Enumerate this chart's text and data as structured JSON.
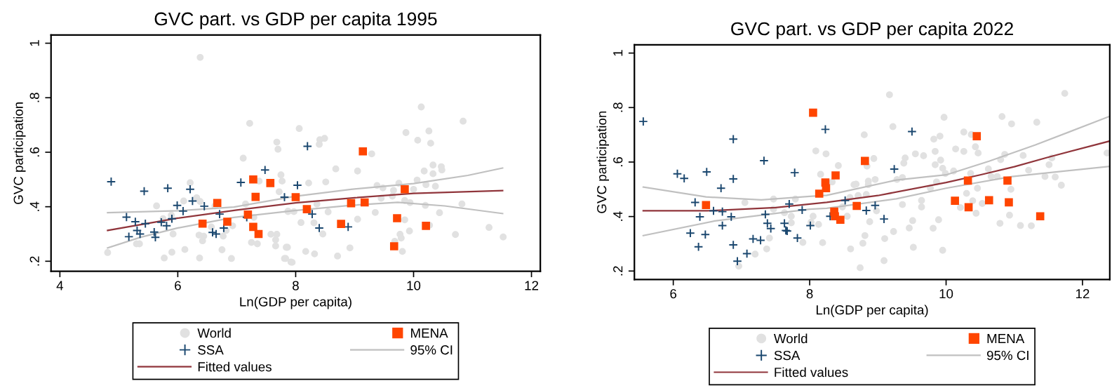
{
  "chart_data": [
    {
      "type": "scatter",
      "title": "GVC part. vs GDP per capita 1995",
      "xlabel": "Ln(GDP per capita)",
      "ylabel": "GVC participation",
      "xlim": [
        3.85,
        12.15
      ],
      "ylim": [
        0.163,
        1.03
      ],
      "xticks": [
        4,
        6,
        8,
        10,
        12
      ],
      "yticks": [
        {
          "value": 0.2,
          "label": ".2"
        },
        {
          "value": 0.4,
          "label": ".4"
        },
        {
          "value": 0.6,
          "label": ".6"
        },
        {
          "value": 0.8,
          "label": ".8"
        },
        1
      ],
      "grid": false,
      "legend": "bottom",
      "series": [
        {
          "name": "World",
          "marker": "circle",
          "color": "#e1e1e1",
          "x": [
            4.81,
            5.3,
            5.35,
            5.64,
            5.75,
            5.77,
            5.9,
            5.92,
            5.89,
            6.1,
            6.12,
            6.21,
            6.32,
            6.38,
            6.38,
            6.36,
            6.37,
            6.42,
            6.44,
            6.57,
            6.63,
            6.75,
            6.77,
            6.82,
            6.91,
            6.93,
            7.11,
            7.15,
            7.22,
            7.25,
            7.29,
            7.35,
            7.38,
            7.68,
            7.7,
            7.58,
            7.68,
            7.66,
            7.66,
            7.72,
            7.75,
            7.77,
            7.84,
            7.81,
            7.87,
            7.92,
            8.06,
            8.41,
            8.49,
            8.4,
            8.68,
            9.05,
            9.29,
            10.13,
            10.84,
            9.87,
            10.26,
            10.07,
            10.29,
            8.22,
            8.51,
            10.33,
            10.47,
            10.18,
            10.33,
            10.48,
            10.06,
            10.21,
            10.37,
            9.75,
            9.66,
            9.38,
            9.48,
            10.0,
            9.64,
            9.45,
            9.85,
            9.94,
            10.2,
            10.82,
            10.44,
            9.35,
            8.36,
            8.55,
            7.87,
            7.97,
            8.09,
            8.31,
            8.46,
            9.05,
            9.85,
            10.27,
            9.93,
            9.77,
            9.79,
            9.68,
            10.71,
            11.28,
            11.52,
            7.86,
            8.17,
            8.32,
            8.71,
            8.92,
            9.81,
            7.83,
            7.94
          ],
          "values": [
            0.232,
            0.264,
            0.264,
            0.403,
            0.356,
            0.212,
            0.233,
            0.3,
            0.369,
            0.421,
            0.243,
            0.488,
            0.433,
            0.419,
            0.948,
            0.296,
            0.212,
            0.275,
            0.292,
            0.326,
            0.403,
            0.242,
            0.292,
            0.313,
            0.21,
            0.33,
            0.578,
            0.41,
            0.706,
            0.269,
            0.361,
            0.264,
            0.494,
            0.637,
            0.611,
            0.299,
            0.299,
            0.256,
            0.279,
            0.455,
            0.517,
            0.494,
            0.251,
            0.21,
            0.384,
            0.197,
            0.687,
            0.646,
            0.651,
            0.629,
            0.539,
            0.531,
            0.594,
            0.766,
            0.714,
            0.672,
            0.678,
            0.644,
            0.633,
            0.487,
            0.491,
            0.553,
            0.547,
            0.531,
            0.521,
            0.535,
            0.498,
            0.481,
            0.475,
            0.486,
            0.46,
            0.478,
            0.469,
            0.464,
            0.439,
            0.431,
            0.423,
            0.415,
            0.405,
            0.41,
            0.378,
            0.379,
            0.41,
            0.381,
            0.382,
            0.382,
            0.342,
            0.341,
            0.3,
            0.354,
            0.352,
            0.332,
            0.311,
            0.299,
            0.285,
            0.273,
            0.298,
            0.324,
            0.289,
            0.251,
            0.236,
            0.227,
            0.219,
            0.249,
            0.236,
            0.21,
            0.196
          ]
        },
        {
          "name": "SSA",
          "marker": "cross",
          "color": "#1a476f",
          "x": [
            4.87,
            5.13,
            5.17,
            5.28,
            5.31,
            5.36,
            5.43,
            5.45,
            5.6,
            5.62,
            5.72,
            5.81,
            5.83,
            5.9,
            5.99,
            6.09,
            6.21,
            6.25,
            6.45,
            6.59,
            6.65,
            6.71,
            6.78,
            7.07,
            7.17,
            7.48,
            7.81,
            8.2,
            8.03,
            8.28,
            8.4,
            8.89
          ],
          "values": [
            0.492,
            0.362,
            0.29,
            0.345,
            0.313,
            0.3,
            0.457,
            0.338,
            0.307,
            0.288,
            0.343,
            0.33,
            0.468,
            0.356,
            0.405,
            0.384,
            0.464,
            0.421,
            0.402,
            0.306,
            0.3,
            0.373,
            0.322,
            0.489,
            0.361,
            0.535,
            0.435,
            0.622,
            0.479,
            0.373,
            0.322,
            0.326
          ]
        },
        {
          "name": "Fitted values",
          "type": "line",
          "marker": "none",
          "color": "#90353b",
          "x": [
            4.81,
            6.0,
            7.0,
            8.0,
            9.0,
            10.0,
            11.51
          ],
          "values": [
            0.313,
            0.358,
            0.388,
            0.414,
            0.433,
            0.449,
            0.459
          ]
        },
        {
          "name": "MENA",
          "marker": "square",
          "color": "#ff4500",
          "x": [
            6.42,
            6.67,
            6.84,
            7.19,
            7.28,
            7.28,
            7.32,
            7.37,
            7.57,
            8.0,
            8.19,
            8.77,
            8.94,
            9.17,
            9.14,
            9.85,
            9.72,
            10.21,
            9.67
          ],
          "values": [
            0.338,
            0.414,
            0.345,
            0.371,
            0.5,
            0.326,
            0.436,
            0.3,
            0.487,
            0.435,
            0.391,
            0.337,
            0.413,
            0.416,
            0.603,
            0.464,
            0.358,
            0.33,
            0.255
          ]
        },
        {
          "name": "95% CI",
          "type": "line",
          "marker": "none",
          "color": "#c0c0c0",
          "x": [
            4.81,
            6.0,
            6.95,
            7.98,
            8.94,
            10.0,
            10.92,
            11.51
          ],
          "values": [
            0.378,
            0.385,
            0.399,
            0.438,
            0.464,
            0.485,
            0.515,
            0.542
          ]
        },
        {
          "type": "line",
          "marker": "none",
          "color": "#c0c0c0",
          "x": [
            4.81,
            5.37,
            6.0,
            6.95,
            7.98,
            8.94,
            9.73,
            10.53,
            11.51
          ],
          "values": [
            0.249,
            0.288,
            0.322,
            0.361,
            0.386,
            0.405,
            0.416,
            0.403,
            0.375
          ]
        }
      ]
    },
    {
      "type": "scatter",
      "title": "GVC part. vs GDP per capita 2022",
      "xlabel": "Ln(GDP per capita)",
      "ylabel": "GVC participation",
      "xlim": [
        5.43,
        12.4
      ],
      "ylim": [
        0.169,
        1.03
      ],
      "xticks": [
        6,
        8,
        10,
        12
      ],
      "yticks": [
        {
          "value": 0.2,
          "label": ".2"
        },
        {
          "value": 0.4,
          "label": ".4"
        },
        {
          "value": 0.6,
          "label": ".6"
        },
        {
          "value": 0.8,
          "label": ".8"
        },
        1
      ],
      "grid": false,
      "legend": "bottom",
      "series": [
        {
          "name": "World",
          "marker": "circle",
          "color": "#e1e1e1",
          "x": [
            6.96,
            7.05,
            7.2,
            7.37,
            7.41,
            7.47,
            7.47,
            7.63,
            7.73,
            7.73,
            7.79,
            7.9,
            8.02,
            8.05,
            8.13,
            8.19,
            8.09,
            8.24,
            8.16,
            8.33,
            8.42,
            8.48,
            8.55,
            8.6,
            8.65,
            8.59,
            9.17,
            9.22,
            8.8,
            8.94,
            8.84,
            8.86,
            8.86,
            8.96,
            8.68,
            8.83,
            8.71,
            8.98,
            8.88,
            8.81,
            8.78,
            8.74,
            9.09,
            9.1,
            9.23,
            9.28,
            9.36,
            9.36,
            9.38,
            9.4,
            9.46,
            9.51,
            9.52,
            9.55,
            9.64,
            9.64,
            9.67,
            9.77,
            9.82,
            9.91,
            9.84,
            9.84,
            9.86,
            9.92,
            9.95,
            9.99,
            9.81,
            9.89,
            9.95,
            9.97,
            10.11,
            10.14,
            10.26,
            10.26,
            10.37,
            10.43,
            10.47,
            10.36,
            10.3,
            10.21,
            10.39,
            10.46,
            10.44,
            10.53,
            10.62,
            10.66,
            10.75,
            10.79,
            10.82,
            10.96,
            10.86,
            10.8,
            10.95,
            10.93,
            11.09,
            11.13,
            11.21,
            11.25,
            11.33,
            11.45,
            11.51,
            11.55,
            11.6,
            11.69,
            11.74,
            12.36
          ],
          "values": [
            0.218,
            0.451,
            0.262,
            0.281,
            0.321,
            0.464,
            0.427,
            0.414,
            0.401,
            0.377,
            0.464,
            0.305,
            0.379,
            0.401,
            0.371,
            0.304,
            0.641,
            0.63,
            0.555,
            0.527,
            0.587,
            0.435,
            0.401,
            0.281,
            0.517,
            0.47,
            0.847,
            0.73,
            0.7,
            0.613,
            0.585,
            0.53,
            0.517,
            0.536,
            0.519,
            0.481,
            0.477,
            0.421,
            0.381,
            0.33,
            0.302,
            0.212,
            0.238,
            0.319,
            0.345,
            0.536,
            0.543,
            0.444,
            0.596,
            0.615,
            0.358,
            0.385,
            0.287,
            0.63,
            0.435,
            0.459,
            0.623,
            0.504,
            0.684,
            0.695,
            0.639,
            0.59,
            0.527,
            0.607,
            0.577,
            0.558,
            0.357,
            0.388,
            0.276,
            0.764,
            0.567,
            0.648,
            0.639,
            0.71,
            0.701,
            0.656,
            0.633,
            0.558,
            0.485,
            0.433,
            0.458,
            0.504,
            0.412,
            0.448,
            0.575,
            0.547,
            0.547,
            0.375,
            0.767,
            0.74,
            0.628,
            0.609,
            0.5,
            0.405,
            0.367,
            0.624,
            0.57,
            0.366,
            0.746,
            0.547,
            0.59,
            0.615,
            0.545,
            0.515,
            0.852,
            0.633
          ]
        },
        {
          "name": "SSA",
          "marker": "cross",
          "color": "#1a476f",
          "x": [
            5.56,
            6.06,
            6.16,
            6.49,
            6.32,
            6.39,
            6.25,
            6.37,
            6.47,
            6.59,
            6.7,
            6.72,
            6.72,
            6.85,
            6.88,
            6.88,
            6.88,
            6.94,
            7.08,
            7.17,
            7.28,
            7.33,
            7.35,
            7.38,
            7.43,
            7.63,
            7.65,
            7.67,
            7.7,
            7.78,
            7.82,
            7.89,
            8.01,
            8.23,
            8.3,
            8.52,
            8.83,
            8.96,
            9.09,
            9.24,
            9.5
          ],
          "values": [
            0.749,
            0.557,
            0.54,
            0.564,
            0.452,
            0.399,
            0.339,
            0.289,
            0.334,
            0.421,
            0.504,
            0.418,
            0.367,
            0.399,
            0.684,
            0.538,
            0.296,
            0.236,
            0.264,
            0.318,
            0.313,
            0.605,
            0.408,
            0.375,
            0.356,
            0.375,
            0.349,
            0.347,
            0.446,
            0.561,
            0.321,
            0.424,
            0.367,
            0.72,
            0.401,
            0.459,
            0.422,
            0.441,
            0.391,
            0.574,
            0.712
          ]
        },
        {
          "name": "Fitted values",
          "type": "line",
          "marker": "none",
          "color": "#90353b",
          "x": [
            5.56,
            6.5,
            7.5,
            8.25,
            9.0,
            10.0,
            10.5,
            11.0,
            11.5,
            12.4
          ],
          "values": [
            0.421,
            0.421,
            0.433,
            0.452,
            0.477,
            0.525,
            0.553,
            0.583,
            0.618,
            0.677
          ]
        },
        {
          "name": "MENA",
          "marker": "square",
          "color": "#ff4500",
          "x": [
            8.05,
            6.48,
            8.14,
            8.23,
            8.24,
            8.38,
            8.36,
            8.37,
            8.45,
            8.69,
            8.81,
            10.45,
            10.32,
            10.13,
            10.33,
            10.63,
            10.9,
            10.92,
            11.38
          ],
          "values": [
            0.781,
            0.442,
            0.484,
            0.525,
            0.504,
            0.551,
            0.418,
            0.401,
            0.388,
            0.439,
            0.604,
            0.695,
            0.532,
            0.458,
            0.434,
            0.46,
            0.532,
            0.452,
            0.401
          ]
        },
        {
          "name": "95% CI",
          "type": "line",
          "marker": "none",
          "color": "#c0c0c0",
          "x": [
            5.56,
            6.48,
            7.29,
            8.0,
            8.25,
            9.27,
            10.0,
            10.63,
            11.31,
            12.4
          ],
          "values": [
            0.508,
            0.472,
            0.461,
            0.474,
            0.478,
            0.534,
            0.553,
            0.603,
            0.663,
            0.768
          ]
        },
        {
          "type": "line",
          "marker": "none",
          "color": "#c0c0c0",
          "x": [
            5.56,
            6.61,
            8.0,
            8.25,
            9.27,
            10.0,
            10.97,
            12.4
          ],
          "values": [
            0.33,
            0.384,
            0.427,
            0.43,
            0.465,
            0.504,
            0.547,
            0.584
          ]
        }
      ]
    }
  ]
}
